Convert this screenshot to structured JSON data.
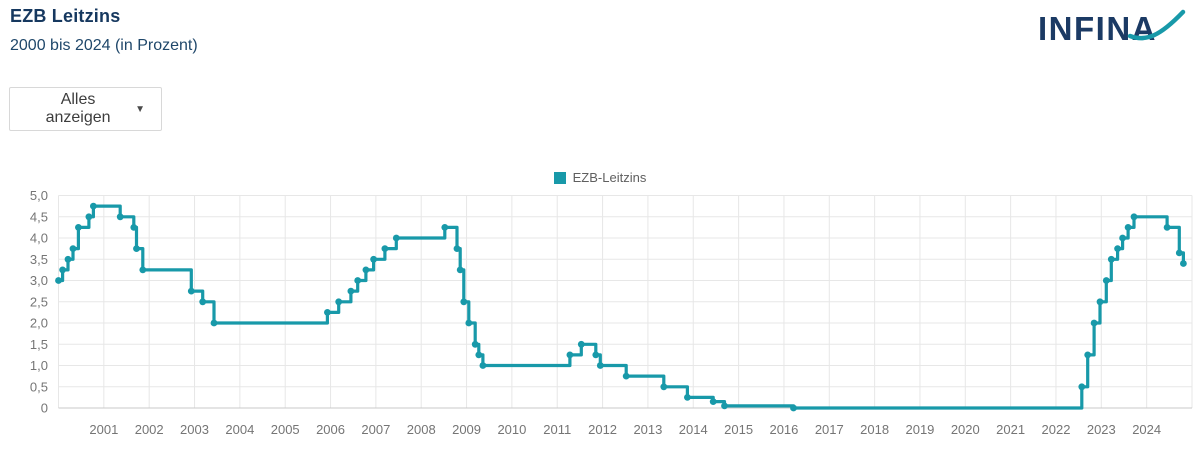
{
  "page": {
    "title": "EZB Leitzins",
    "subtitle": "2000 bis 2024 (in Prozent)"
  },
  "logo": {
    "text": "INFINA"
  },
  "filter": {
    "selected_label": "Alles anzeigen",
    "chevron": "▼"
  },
  "legend": {
    "label": "EZB-Leitzins"
  },
  "colors": {
    "line": "#1899a9",
    "title": "#16385f",
    "subtitle": "#1f476a",
    "axis_text": "#757575",
    "grid": "#e7e7e7",
    "axis_line": "#c9c9c9",
    "legend_text": "#5f5f5f",
    "logo_navy": "#1b3a64",
    "logo_teal": "#1899a9"
  },
  "chart_data": {
    "type": "line",
    "step": "after",
    "title": "EZB Leitzins",
    "subtitle": "2000 bis 2024 (in Prozent)",
    "xlabel": "",
    "ylabel": "",
    "xlim": [
      2000,
      2025
    ],
    "ylim": [
      0,
      5
    ],
    "grid": true,
    "legend_position": "top-center",
    "x_tick_labels": [
      "2001",
      "2002",
      "2003",
      "2004",
      "2005",
      "2006",
      "2007",
      "2008",
      "2009",
      "2010",
      "2011",
      "2012",
      "2013",
      "2014",
      "2015",
      "2016",
      "2017",
      "2018",
      "2019",
      "2020",
      "2021",
      "2022",
      "2023",
      "2024"
    ],
    "y_tick_values": [
      0,
      0.5,
      1.0,
      1.5,
      2.0,
      2.5,
      3.0,
      3.5,
      4.0,
      4.5,
      5.0
    ],
    "y_tick_labels": [
      "0",
      "0,5",
      "1,0",
      "1,5",
      "2,0",
      "2,5",
      "3,0",
      "3,5",
      "4,0",
      "4,5",
      "5,0"
    ],
    "series": [
      {
        "name": "EZB-Leitzins",
        "points": [
          [
            2000.0,
            3.0
          ],
          [
            2000.09,
            3.25
          ],
          [
            2000.21,
            3.5
          ],
          [
            2000.32,
            3.75
          ],
          [
            2000.44,
            4.25
          ],
          [
            2000.67,
            4.5
          ],
          [
            2000.77,
            4.75
          ],
          [
            2001.36,
            4.5
          ],
          [
            2001.66,
            4.25
          ],
          [
            2001.72,
            3.75
          ],
          [
            2001.86,
            3.25
          ],
          [
            2002.93,
            2.75
          ],
          [
            2003.18,
            2.5
          ],
          [
            2003.43,
            2.0
          ],
          [
            2005.93,
            2.25
          ],
          [
            2006.18,
            2.5
          ],
          [
            2006.45,
            2.75
          ],
          [
            2006.6,
            3.0
          ],
          [
            2006.78,
            3.25
          ],
          [
            2006.95,
            3.5
          ],
          [
            2007.2,
            3.75
          ],
          [
            2007.45,
            4.0
          ],
          [
            2008.52,
            4.25
          ],
          [
            2008.79,
            3.75
          ],
          [
            2008.86,
            3.25
          ],
          [
            2008.94,
            2.5
          ],
          [
            2009.05,
            2.0
          ],
          [
            2009.19,
            1.5
          ],
          [
            2009.27,
            1.25
          ],
          [
            2009.36,
            1.0
          ],
          [
            2011.28,
            1.25
          ],
          [
            2011.53,
            1.5
          ],
          [
            2011.85,
            1.25
          ],
          [
            2011.95,
            1.0
          ],
          [
            2012.52,
            0.75
          ],
          [
            2013.35,
            0.5
          ],
          [
            2013.87,
            0.25
          ],
          [
            2014.44,
            0.15
          ],
          [
            2014.69,
            0.05
          ],
          [
            2016.21,
            0.0
          ],
          [
            2022.57,
            0.5
          ],
          [
            2022.7,
            1.25
          ],
          [
            2022.84,
            2.0
          ],
          [
            2022.97,
            2.5
          ],
          [
            2023.11,
            3.0
          ],
          [
            2023.22,
            3.5
          ],
          [
            2023.36,
            3.75
          ],
          [
            2023.47,
            4.0
          ],
          [
            2023.59,
            4.25
          ],
          [
            2023.72,
            4.5
          ],
          [
            2024.45,
            4.25
          ],
          [
            2024.72,
            3.65
          ],
          [
            2024.81,
            3.4
          ]
        ]
      }
    ]
  }
}
